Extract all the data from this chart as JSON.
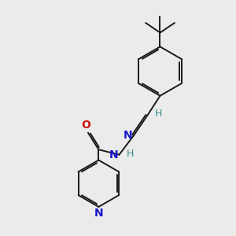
{
  "background_color": "#ebebeb",
  "bond_color": "#1a1a1a",
  "bond_width": 1.4,
  "atom_colors": {
    "N_blue": "#1515cc",
    "N_teal": "#3a8a8a",
    "O_red": "#cc1515",
    "H_teal": "#3a8a8a"
  },
  "figsize": [
    3.0,
    3.0
  ],
  "dpi": 100,
  "xlim": [
    0,
    10
  ],
  "ylim": [
    0,
    10
  ]
}
